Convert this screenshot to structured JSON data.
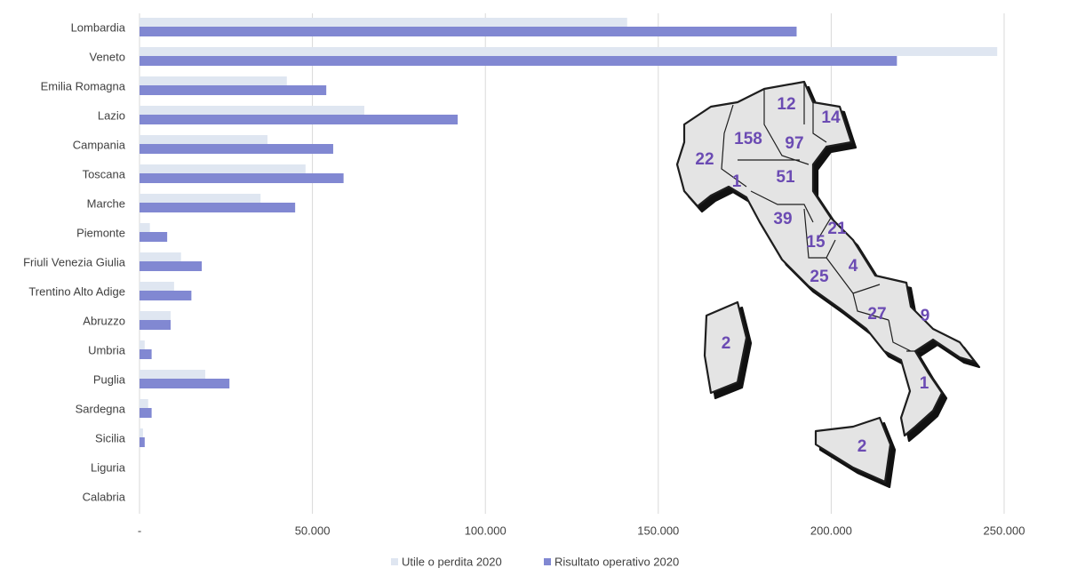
{
  "chart_data": {
    "type": "bar",
    "orientation": "horizontal",
    "categories": [
      "Lombardia",
      "Veneto",
      "Emilia Romagna",
      "Lazio",
      "Campania",
      "Toscana",
      "Marche",
      "Piemonte",
      "Friuli Venezia Giulia",
      "Trentino Alto Adige",
      "Abruzzo",
      "Umbria",
      "Puglia",
      "Sardegna",
      "Sicilia",
      "Liguria",
      "Calabria"
    ],
    "series": [
      {
        "name": "Utile o perdita 2020",
        "color": "#dfe6f1",
        "values": [
          141000,
          248000,
          42600,
          65000,
          37000,
          48000,
          35000,
          3000,
          12000,
          10000,
          9000,
          1500,
          19000,
          2500,
          1000,
          0,
          0
        ]
      },
      {
        "name": "Risultato operativo 2020",
        "color": "#8188d2",
        "values": [
          190000,
          219000,
          54000,
          92000,
          56000,
          59000,
          45000,
          8000,
          18000,
          15000,
          9000,
          3500,
          26000,
          3500,
          1500,
          0,
          0
        ]
      }
    ],
    "xlim": [
      0,
      250000
    ],
    "xticks": [
      {
        "value": 0,
        "label": "-"
      },
      {
        "value": 50000,
        "label": "50.000"
      },
      {
        "value": 100000,
        "label": "100.000"
      },
      {
        "value": 150000,
        "label": "150.000"
      },
      {
        "value": 200000,
        "label": "200.000"
      },
      {
        "value": 250000,
        "label": "250.000"
      }
    ],
    "grid": true,
    "legend": "bottom",
    "annotations": [
      12,
      14,
      158,
      97,
      22,
      1,
      51,
      39,
      21,
      15,
      4,
      25,
      27,
      9,
      2,
      1,
      2
    ]
  }
}
